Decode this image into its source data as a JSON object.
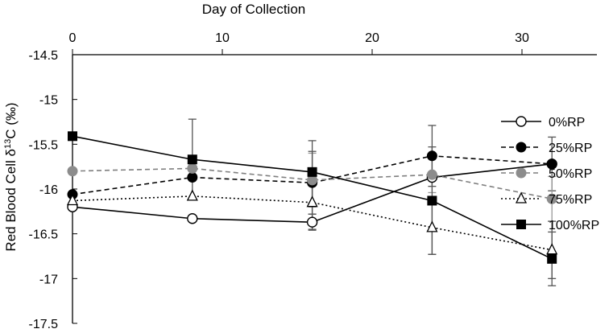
{
  "chart_data": {
    "type": "line",
    "title": "",
    "xlabel": "Day of Collection",
    "ylabel_main": "Red Blood Cell δ",
    "ylabel_sup": "13",
    "ylabel_tail": "C (‰)",
    "xlim": [
      0,
      35
    ],
    "ylim": [
      -17.5,
      -14.5
    ],
    "x_ticks": [
      0,
      10,
      20,
      30
    ],
    "x_tick_labels": [
      "0",
      "10",
      "20",
      "30"
    ],
    "y_ticks": [
      -14.5,
      -15,
      -15.5,
      -16,
      -16.5,
      -17,
      -17.5
    ],
    "y_tick_labels": [
      "-14.5",
      "-15",
      "-15.5",
      "-16",
      "-16.5",
      "-17",
      "-17.5"
    ],
    "x_axis_position": "top",
    "grid": false,
    "legend_position": "right",
    "x": [
      0,
      8,
      16,
      24,
      32
    ],
    "series": [
      {
        "name": "0%RP",
        "values": [
          -16.2,
          -16.33,
          -16.37,
          -15.87,
          -15.72
        ],
        "errors": [
          0,
          0,
          0.09,
          0,
          0
        ],
        "color": "#000000",
        "dash": "solid",
        "marker": "circle-open"
      },
      {
        "name": "25%RP",
        "values": [
          -16.06,
          -15.87,
          -15.93,
          -15.63,
          -15.72
        ],
        "errors": [
          0,
          0,
          0.35,
          0.34,
          0.3
        ],
        "color": "#000000",
        "dash": "dashed",
        "marker": "circle-filled"
      },
      {
        "name": "50%RP",
        "values": [
          -15.8,
          -15.77,
          -15.9,
          -15.84,
          -16.11
        ],
        "errors": [
          0,
          0,
          0.3,
          0.2,
          0.25
        ],
        "color": "#7f7f7f",
        "dash": "dashed",
        "marker": "circle-filled-gray"
      },
      {
        "name": "75%RP",
        "values": [
          -16.13,
          -16.08,
          -16.15,
          -16.43,
          -16.68
        ],
        "errors": [
          0,
          0,
          0.3,
          0.3,
          0.32
        ],
        "color": "#000000",
        "dash": "dotted",
        "marker": "triangle-open"
      },
      {
        "name": "100%RP",
        "values": [
          -15.41,
          -15.67,
          -15.81,
          -16.13,
          -16.78
        ],
        "errors": [
          0,
          0.45,
          0.35,
          0.6,
          0.3
        ],
        "color": "#000000",
        "dash": "solid",
        "marker": "square-filled"
      }
    ]
  }
}
